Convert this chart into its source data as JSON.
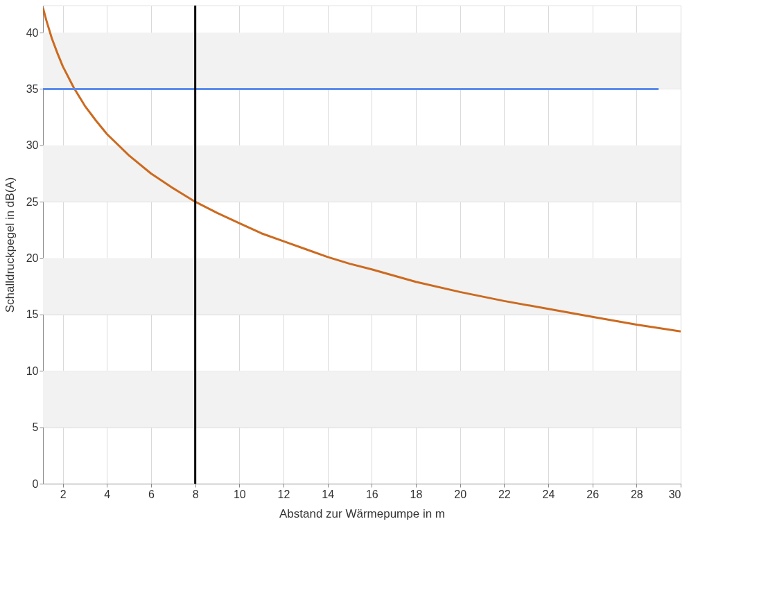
{
  "chart_data": {
    "type": "line",
    "xlabel": "Abstand zur Wärmepumpe in m",
    "ylabel": "Schalldruckpegel in dB(A)",
    "xlim": [
      1.1,
      30
    ],
    "ylim": [
      0,
      42.4
    ],
    "xticks": [
      2,
      4,
      6,
      8,
      10,
      12,
      14,
      16,
      18,
      20,
      22,
      24,
      26,
      28,
      30
    ],
    "yticks": [
      0,
      5,
      10,
      15,
      20,
      25,
      30,
      35,
      40
    ],
    "grid": true,
    "marker": "none",
    "line_style": "solid",
    "series": [
      {
        "color": "#cc6a1f",
        "x": [
          1.1,
          1.25,
          1.5,
          1.75,
          2,
          2.5,
          3,
          3.5,
          4,
          5,
          6,
          7,
          8,
          9,
          10,
          11,
          12,
          13,
          14,
          15,
          16,
          18,
          20,
          22,
          24,
          26,
          28,
          30
        ],
        "values": [
          42.2,
          41.1,
          39.5,
          38.2,
          37.0,
          35.1,
          33.5,
          32.2,
          31.0,
          29.1,
          27.5,
          26.2,
          25.0,
          24.0,
          23.1,
          22.2,
          21.5,
          20.8,
          20.1,
          19.5,
          19.0,
          17.9,
          17.0,
          16.2,
          15.5,
          14.8,
          14.1,
          13.5
        ]
      },
      {
        "color": "#5b8def",
        "x": [
          1.1,
          29
        ],
        "values": [
          35,
          35
        ]
      }
    ],
    "ref_lines": [
      {
        "axis": "x",
        "value": 8,
        "color": "#000000"
      }
    ],
    "bands": [
      {
        "axis": "y",
        "from": 5,
        "to": 10,
        "color": "#f2f2f2"
      },
      {
        "axis": "y",
        "from": 15,
        "to": 20,
        "color": "#f2f2f2"
      },
      {
        "axis": "y",
        "from": 25,
        "to": 30,
        "color": "#f2f2f2"
      },
      {
        "axis": "y",
        "from": 35,
        "to": 40,
        "color": "#f2f2f2"
      }
    ]
  }
}
